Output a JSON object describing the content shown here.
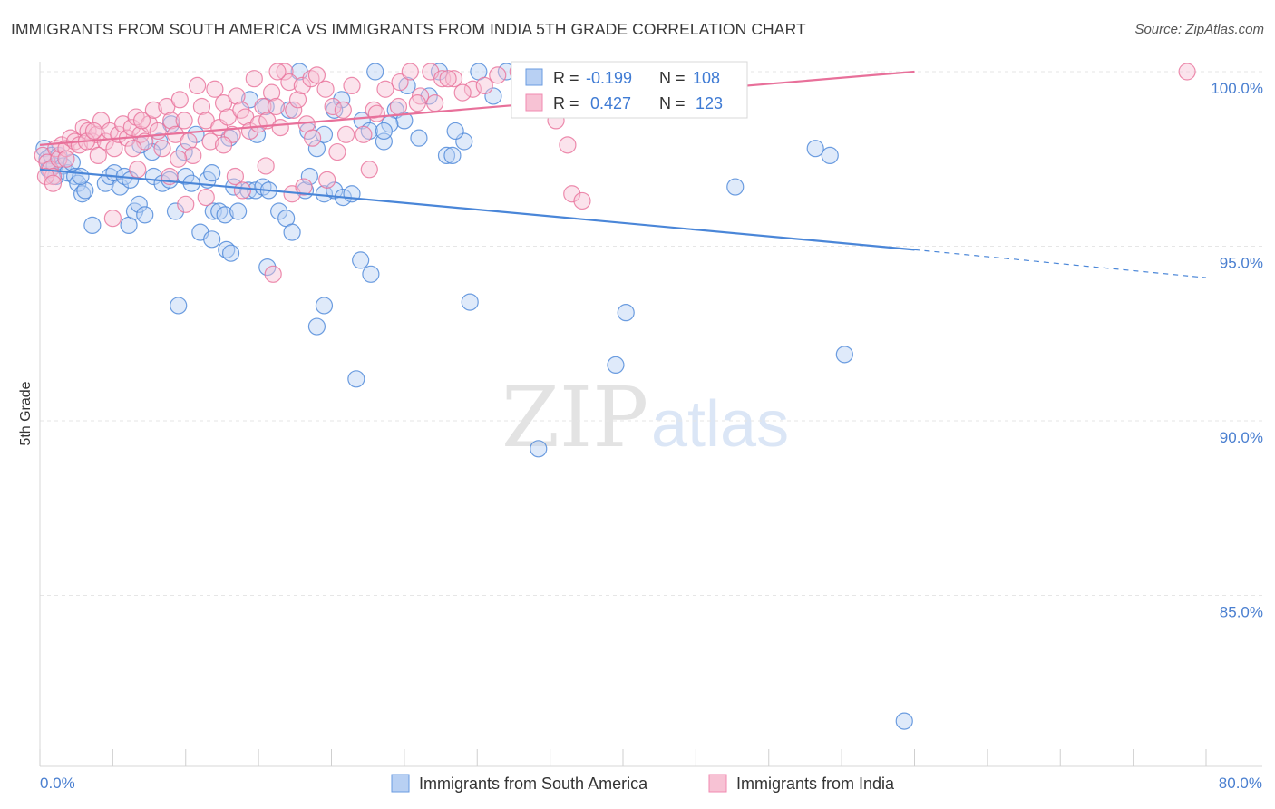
{
  "title": "IMMIGRANTS FROM SOUTH AMERICA VS IMMIGRANTS FROM INDIA 5TH GRADE CORRELATION CHART",
  "source": "Source: ZipAtlas.com",
  "watermark": {
    "zip": "ZIP",
    "atlas": "atlas"
  },
  "legend_box": {
    "rows": [
      {
        "r_label": "R =",
        "r_value": "-0.199",
        "n_label": "N =",
        "n_value": "108",
        "color": "#6a9be0"
      },
      {
        "r_label": "R =",
        "r_value": "0.427",
        "n_label": "N =",
        "n_value": "123",
        "color": "#f08ab0"
      }
    ]
  },
  "bottom_legend": [
    {
      "label": "Immigrants from South America",
      "color": "#6a9be0"
    },
    {
      "label": "Immigrants from India",
      "color": "#f08ab0"
    }
  ],
  "colors": {
    "blue": "#4a86d8",
    "pink": "#e8709a",
    "blue_fill": "#b8d0f3",
    "pink_fill": "#f7c2d4",
    "axis_text": "#4a7fd0"
  },
  "chart_data": {
    "type": "scatter",
    "title": "IMMIGRANTS FROM SOUTH AMERICA VS IMMIGRANTS FROM INDIA 5TH GRADE CORRELATION CHART",
    "xlabel": "",
    "ylabel": "5th Grade",
    "xlim": [
      0,
      80
    ],
    "ylim": [
      80.5,
      100.8
    ],
    "x_tick_labels": [
      "0.0%",
      "80.0%"
    ],
    "y_ticks": [
      85,
      90,
      95,
      100
    ],
    "y_tick_labels": [
      "85.0%",
      "90.0%",
      "95.0%",
      "100.0%"
    ],
    "grid": true,
    "legend": "bottom",
    "series": [
      {
        "name": "Immigrants from South America",
        "r": -0.199,
        "n": 108,
        "trend": {
          "x0": 0,
          "y0": 97.2,
          "x1": 60,
          "y1": 94.9,
          "dashed_to_x": 80,
          "dashed_to_y": 94.1
        },
        "points": [
          [
            0.3,
            97.8
          ],
          [
            0.5,
            97.5
          ],
          [
            0.6,
            97.2
          ],
          [
            0.8,
            97.6
          ],
          [
            1.0,
            97.3
          ],
          [
            1.1,
            97.0
          ],
          [
            1.3,
            97.6
          ],
          [
            1.6,
            97.3
          ],
          [
            1.9,
            97.1
          ],
          [
            2.2,
            97.4
          ],
          [
            2.4,
            97.0
          ],
          [
            2.6,
            96.8
          ],
          [
            2.9,
            96.5
          ],
          [
            3.1,
            96.6
          ],
          [
            4.5,
            96.8
          ],
          [
            4.8,
            97.0
          ],
          [
            5.1,
            97.1
          ],
          [
            5.5,
            96.7
          ],
          [
            5.8,
            97.0
          ],
          [
            6.1,
            95.6
          ],
          [
            6.5,
            96.0
          ],
          [
            6.8,
            96.2
          ],
          [
            7.2,
            95.9
          ],
          [
            7.8,
            97.0
          ],
          [
            8.4,
            96.8
          ],
          [
            8.9,
            96.9
          ],
          [
            9.3,
            96.0
          ],
          [
            10.0,
            97.0
          ],
          [
            10.4,
            96.8
          ],
          [
            11.0,
            95.4
          ],
          [
            11.5,
            96.9
          ],
          [
            11.9,
            96.0
          ],
          [
            12.3,
            96.0
          ],
          [
            12.7,
            95.9
          ],
          [
            13.3,
            96.7
          ],
          [
            13.6,
            96.0
          ],
          [
            14.3,
            96.6
          ],
          [
            14.8,
            96.6
          ],
          [
            15.3,
            96.7
          ],
          [
            15.7,
            96.6
          ],
          [
            16.4,
            96.0
          ],
          [
            16.9,
            95.8
          ],
          [
            17.3,
            95.4
          ],
          [
            18.2,
            96.6
          ],
          [
            18.5,
            97.0
          ],
          [
            19.0,
            97.8
          ],
          [
            19.5,
            96.5
          ],
          [
            20.2,
            96.6
          ],
          [
            20.8,
            96.4
          ],
          [
            21.4,
            96.5
          ],
          [
            22.1,
            98.6
          ],
          [
            22.6,
            98.3
          ],
          [
            23.6,
            98.0
          ],
          [
            24.4,
            98.9
          ],
          [
            27.9,
            97.6
          ],
          [
            28.3,
            97.6
          ],
          [
            29.1,
            98.0
          ],
          [
            26.7,
            99.3
          ],
          [
            25.0,
            98.6
          ],
          [
            24.0,
            98.5
          ],
          [
            23.6,
            98.3
          ],
          [
            20.7,
            99.2
          ],
          [
            20.2,
            98.9
          ],
          [
            19.5,
            98.2
          ],
          [
            18.4,
            98.3
          ],
          [
            17.1,
            98.9
          ],
          [
            15.5,
            99.0
          ],
          [
            14.9,
            98.2
          ],
          [
            14.4,
            99.2
          ],
          [
            13.0,
            98.1
          ],
          [
            11.8,
            97.1
          ],
          [
            10.7,
            98.2
          ],
          [
            9.9,
            97.7
          ],
          [
            9.0,
            98.5
          ],
          [
            8.2,
            98.0
          ],
          [
            7.7,
            97.7
          ],
          [
            6.9,
            97.9
          ],
          [
            3.6,
            95.6
          ],
          [
            6.2,
            96.9
          ],
          [
            9.5,
            93.3
          ],
          [
            11.8,
            95.2
          ],
          [
            12.8,
            94.9
          ],
          [
            13.1,
            94.8
          ],
          [
            15.6,
            94.4
          ],
          [
            19.5,
            93.3
          ],
          [
            19.0,
            92.7
          ],
          [
            22.0,
            94.6
          ],
          [
            22.7,
            94.2
          ],
          [
            29.5,
            93.4
          ],
          [
            21.7,
            91.2
          ],
          [
            34.2,
            89.2
          ],
          [
            39.5,
            91.6
          ],
          [
            40.2,
            93.1
          ],
          [
            47.7,
            96.7
          ],
          [
            53.2,
            97.8
          ],
          [
            54.2,
            97.6
          ],
          [
            55.2,
            91.9
          ],
          [
            59.3,
            81.4
          ],
          [
            23.0,
            100.0
          ],
          [
            25.2,
            99.6
          ],
          [
            27.4,
            100.0
          ],
          [
            30.1,
            100.0
          ],
          [
            32.0,
            100.0
          ],
          [
            28.5,
            98.3
          ],
          [
            26.0,
            98.1
          ],
          [
            17.8,
            100.0
          ],
          [
            31.1,
            99.3
          ],
          [
            2.8,
            97.0
          ]
        ]
      },
      {
        "name": "Immigrants from India",
        "r": 0.427,
        "n": 123,
        "trend": {
          "x0": 0,
          "y0": 97.9,
          "x1": 60,
          "y1": 100.0
        },
        "points": [
          [
            0.2,
            97.6
          ],
          [
            0.5,
            97.4
          ],
          [
            0.7,
            97.2
          ],
          [
            0.9,
            97.0
          ],
          [
            1.1,
            97.8
          ],
          [
            1.3,
            97.5
          ],
          [
            1.5,
            97.9
          ],
          [
            1.8,
            97.8
          ],
          [
            2.1,
            98.1
          ],
          [
            2.4,
            98.0
          ],
          [
            2.7,
            97.9
          ],
          [
            3.0,
            98.4
          ],
          [
            3.3,
            98.3
          ],
          [
            3.6,
            98.0
          ],
          [
            3.9,
            98.2
          ],
          [
            4.2,
            98.6
          ],
          [
            4.5,
            98.0
          ],
          [
            4.8,
            98.3
          ],
          [
            5.1,
            97.8
          ],
          [
            5.4,
            98.2
          ],
          [
            5.7,
            98.5
          ],
          [
            6.0,
            98.1
          ],
          [
            6.3,
            98.4
          ],
          [
            6.6,
            98.7
          ],
          [
            6.9,
            98.2
          ],
          [
            7.2,
            98.0
          ],
          [
            7.5,
            98.5
          ],
          [
            7.8,
            98.9
          ],
          [
            8.1,
            98.3
          ],
          [
            8.4,
            97.8
          ],
          [
            8.7,
            99.0
          ],
          [
            9.0,
            98.6
          ],
          [
            9.3,
            98.2
          ],
          [
            9.6,
            99.2
          ],
          [
            9.9,
            98.6
          ],
          [
            10.2,
            98.0
          ],
          [
            10.5,
            97.6
          ],
          [
            10.8,
            99.6
          ],
          [
            11.1,
            99.0
          ],
          [
            11.4,
            98.6
          ],
          [
            11.7,
            98.0
          ],
          [
            12.0,
            99.5
          ],
          [
            12.3,
            98.4
          ],
          [
            12.6,
            99.1
          ],
          [
            12.9,
            98.7
          ],
          [
            13.2,
            98.2
          ],
          [
            13.5,
            99.3
          ],
          [
            13.8,
            98.9
          ],
          [
            14.1,
            98.7
          ],
          [
            14.4,
            98.3
          ],
          [
            14.7,
            99.8
          ],
          [
            15.0,
            98.5
          ],
          [
            15.3,
            99.0
          ],
          [
            15.6,
            98.6
          ],
          [
            15.9,
            99.4
          ],
          [
            16.2,
            99.0
          ],
          [
            16.5,
            98.4
          ],
          [
            16.8,
            100.0
          ],
          [
            17.1,
            99.7
          ],
          [
            17.4,
            98.9
          ],
          [
            17.7,
            99.2
          ],
          [
            18.0,
            99.6
          ],
          [
            18.3,
            98.5
          ],
          [
            18.6,
            99.8
          ],
          [
            19.0,
            99.9
          ],
          [
            19.6,
            99.5
          ],
          [
            20.1,
            99.0
          ],
          [
            20.8,
            98.9
          ],
          [
            21.4,
            99.6
          ],
          [
            22.2,
            98.2
          ],
          [
            22.9,
            98.9
          ],
          [
            23.7,
            99.5
          ],
          [
            24.7,
            99.7
          ],
          [
            26.1,
            99.3
          ],
          [
            26.8,
            100.0
          ],
          [
            27.6,
            99.8
          ],
          [
            28.4,
            99.8
          ],
          [
            29.7,
            99.5
          ],
          [
            31.4,
            99.9
          ],
          [
            32.8,
            100.0
          ],
          [
            34.5,
            99.5
          ],
          [
            35.4,
            98.6
          ],
          [
            36.2,
            97.9
          ],
          [
            36.5,
            96.5
          ],
          [
            37.2,
            96.3
          ],
          [
            0.4,
            97.0
          ],
          [
            0.9,
            96.8
          ],
          [
            1.8,
            97.5
          ],
          [
            3.2,
            98.0
          ],
          [
            3.7,
            98.3
          ],
          [
            5.0,
            95.8
          ],
          [
            6.4,
            97.8
          ],
          [
            7.0,
            98.6
          ],
          [
            9.5,
            97.5
          ],
          [
            10.0,
            96.2
          ],
          [
            12.6,
            97.9
          ],
          [
            13.4,
            97.0
          ],
          [
            15.5,
            97.3
          ],
          [
            16.0,
            94.2
          ],
          [
            17.3,
            96.5
          ],
          [
            18.1,
            96.7
          ],
          [
            19.7,
            96.9
          ],
          [
            20.4,
            97.7
          ],
          [
            22.6,
            97.2
          ],
          [
            24.6,
            99.0
          ],
          [
            25.9,
            99.1
          ],
          [
            28.0,
            99.8
          ],
          [
            29.0,
            99.4
          ],
          [
            33.3,
            99.1
          ],
          [
            34.0,
            99.2
          ],
          [
            78.7,
            100.0
          ],
          [
            4.0,
            97.6
          ],
          [
            6.7,
            97.2
          ],
          [
            8.9,
            97.0
          ],
          [
            11.4,
            96.4
          ],
          [
            13.9,
            96.6
          ],
          [
            16.3,
            100.0
          ],
          [
            18.7,
            98.1
          ],
          [
            21.0,
            98.2
          ],
          [
            23.1,
            98.8
          ],
          [
            25.4,
            100.0
          ],
          [
            27.1,
            99.1
          ],
          [
            30.5,
            99.6
          ]
        ]
      }
    ]
  }
}
